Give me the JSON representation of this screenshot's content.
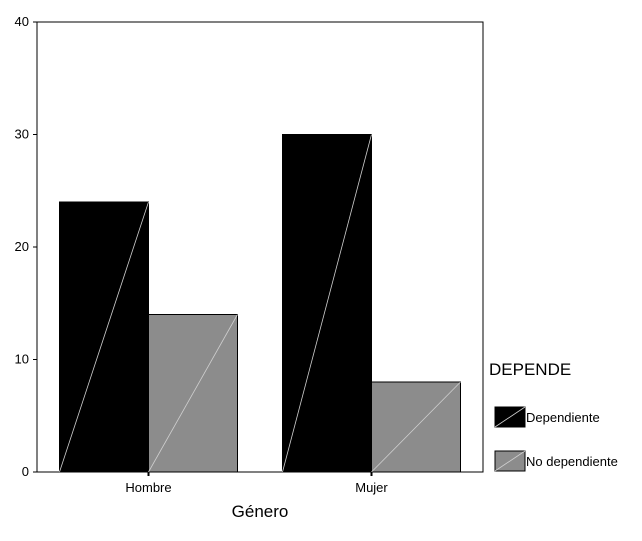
{
  "chart_data": {
    "type": "bar",
    "title": "",
    "xlabel": "Género",
    "ylabel": "",
    "categories": [
      "Hombre",
      "Mujer"
    ],
    "series": [
      {
        "name": "Dependiente",
        "values": [
          24,
          30
        ],
        "color": "#000000"
      },
      {
        "name": "No dependiente",
        "values": [
          14,
          8
        ],
        "color": "#8c8c8c"
      }
    ],
    "ylim": [
      0,
      40
    ],
    "yticks": [
      0,
      10,
      20,
      30,
      40
    ],
    "grid": false,
    "legend": {
      "title": "DEPENDE",
      "placement": "right"
    }
  }
}
